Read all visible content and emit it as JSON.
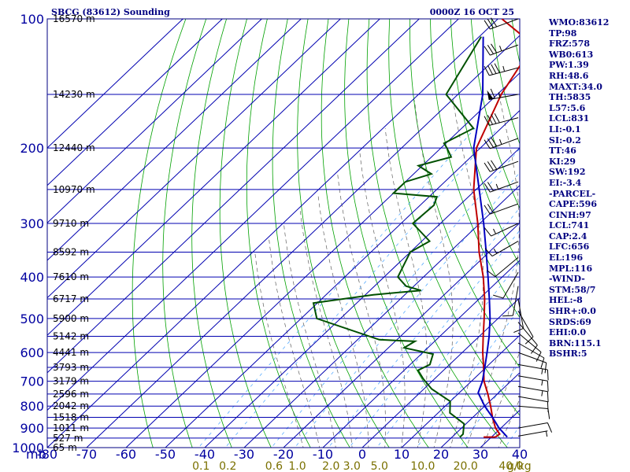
{
  "header": {
    "station": "SBCG (83612) Sounding",
    "time": "0000Z 16 OCT 25"
  },
  "colors": {
    "frame": "#000080",
    "grid": "#0000b0",
    "dry_adiabat": "#00a000",
    "moist_adiabat": "#606060",
    "mixing_ratio": "#40a0ff",
    "temperature": "#c00000",
    "dewpoint": "#005000",
    "parcel": "#0000c0",
    "wind_barb": "#000000"
  },
  "indices": [
    "WMO:83612",
    "TP:98",
    "FRZ:578",
    "WB0:613",
    "PW:1.39",
    "RH:48.6",
    "MAXT:34.0",
    "TH:5835",
    "L57:5.6",
    "LCL:831",
    "LI:-0.1",
    "SI:-0.2",
    "TT:46",
    "KI:29",
    "SW:192",
    "EI:-3.4",
    "-PARCEL-",
    "CAPE:596",
    "CINH:97",
    "LCL:741",
    "CAP:2.4",
    "LFC:656",
    "EL:196",
    "MPL:116",
    "-WIND-",
    "STM:58/7",
    "HEL:-8",
    "SHR+:0.0",
    "SRDS:69",
    "EHI:0.0",
    "BRN:115.1",
    "BSHR:5"
  ],
  "chart_data": {
    "type": "skew-t sounding",
    "title": "SBCG (83612) Sounding 0000Z 16 OCT 25",
    "xlabel_unit": "mb",
    "pressure_ticks": [
      100,
      200,
      300,
      400,
      500,
      600,
      700,
      800,
      900,
      1000
    ],
    "pressure_labels": [
      "100",
      "200",
      "300",
      "400",
      "500",
      "600",
      "700",
      "800",
      "900",
      "1000"
    ],
    "temperature_ticks": [
      "-80",
      "-70",
      "-60",
      "-50",
      "-40",
      "-30",
      "-20",
      "-10",
      "0",
      "10",
      "20",
      "30",
      "40"
    ],
    "temperature_range_C": [
      -80,
      40
    ],
    "mixing_ratio_labels": [
      "0.1",
      "0.2",
      "0.6",
      "1.0",
      "2.0",
      "3.0",
      "5.0",
      "10.0",
      "20.0",
      "40.0",
      "g/kg"
    ],
    "height_labels": [
      {
        "p": 100,
        "text": "16570 m"
      },
      {
        "p": 150,
        "text": "14230 m"
      },
      {
        "p": 200,
        "text": "12440 m"
      },
      {
        "p": 250,
        "text": "10970 m"
      },
      {
        "p": 300,
        "text": "9710 m"
      },
      {
        "p": 350,
        "text": "8592 m"
      },
      {
        "p": 400,
        "text": "7610 m"
      },
      {
        "p": 450,
        "text": "6717 m"
      },
      {
        "p": 500,
        "text": "5900 m"
      },
      {
        "p": 550,
        "text": "5142 m"
      },
      {
        "p": 600,
        "text": "4441 m"
      },
      {
        "p": 650,
        "text": "3793 m"
      },
      {
        "p": 700,
        "text": "3179 m"
      },
      {
        "p": 750,
        "text": "2596 m"
      },
      {
        "p": 800,
        "text": "2042 m"
      },
      {
        "p": 850,
        "text": "1518 m"
      },
      {
        "p": 900,
        "text": "1011 m"
      },
      {
        "p": 950,
        "text": "527 m"
      },
      {
        "p": 1000,
        "text": "65 m"
      }
    ],
    "series": [
      {
        "name": "Temperature",
        "color": "#c00000",
        "points": [
          [
            100,
            -79
          ],
          [
            115,
            -64
          ],
          [
            150,
            -59
          ],
          [
            200,
            -51
          ],
          [
            250,
            -40.6
          ],
          [
            300,
            -30.5
          ],
          [
            350,
            -22.5
          ],
          [
            400,
            -14.8
          ],
          [
            450,
            -8.6
          ],
          [
            500,
            -3.5
          ],
          [
            550,
            1
          ],
          [
            600,
            5.2
          ],
          [
            650,
            9.4
          ],
          [
            700,
            13.2
          ],
          [
            750,
            17.6
          ],
          [
            800,
            21.5
          ],
          [
            850,
            25
          ],
          [
            900,
            28.6
          ],
          [
            930,
            31.3
          ],
          [
            945,
            31
          ]
        ]
      },
      {
        "name": "Dewpoint",
        "color": "#005000",
        "points": [
          [
            110,
            -79.5
          ],
          [
            150,
            -73
          ],
          [
            180,
            -57
          ],
          [
            195,
            -60.5
          ],
          [
            200,
            -58.5
          ],
          [
            210,
            -55
          ],
          [
            220,
            -61
          ],
          [
            230,
            -55.5
          ],
          [
            240,
            -60
          ],
          [
            255,
            -60
          ],
          [
            260,
            -48
          ],
          [
            272,
            -46.5
          ],
          [
            300,
            -47
          ],
          [
            330,
            -38
          ],
          [
            350,
            -40
          ],
          [
            400,
            -36.5
          ],
          [
            420,
            -32
          ],
          [
            430,
            -27
          ],
          [
            440,
            -38
          ],
          [
            460,
            -51
          ],
          [
            500,
            -46
          ],
          [
            560,
            -24.5
          ],
          [
            565,
            -15
          ],
          [
            585,
            -16
          ],
          [
            605,
            -7
          ],
          [
            640,
            -5
          ],
          [
            660,
            -6.5
          ],
          [
            690,
            -3
          ],
          [
            730,
            2
          ],
          [
            780,
            10
          ],
          [
            830,
            13
          ],
          [
            880,
            19.5
          ],
          [
            930,
            22
          ],
          [
            945,
            22
          ]
        ]
      },
      {
        "name": "Parcel",
        "color": "#0000c0",
        "points": [
          [
            110,
            -79
          ],
          [
            150,
            -63.7
          ],
          [
            200,
            -51.7
          ],
          [
            250,
            -39.2
          ],
          [
            300,
            -29
          ],
          [
            350,
            -20.7
          ],
          [
            400,
            -13.6
          ],
          [
            450,
            -7.4
          ],
          [
            500,
            -2
          ],
          [
            550,
            2.5
          ],
          [
            600,
            6.3
          ],
          [
            650,
            9.7
          ],
          [
            700,
            12.8
          ],
          [
            745,
            14.8
          ],
          [
            800,
            20
          ],
          [
            850,
            25
          ],
          [
            900,
            29.5
          ],
          [
            945,
            34
          ]
        ]
      }
    ],
    "surface_segment": {
      "p": 945,
      "t1": 28,
      "t2": 31
    },
    "wind_barbs": [
      {
        "p": 100,
        "dir": 250,
        "kt": 30
      },
      {
        "p": 115,
        "dir": 250,
        "kt": 35
      },
      {
        "p": 130,
        "dir": 255,
        "kt": 45
      },
      {
        "p": 150,
        "dir": 260,
        "kt": 65
      },
      {
        "p": 170,
        "dir": 255,
        "kt": 40
      },
      {
        "p": 190,
        "dir": 250,
        "kt": 35
      },
      {
        "p": 215,
        "dir": 250,
        "kt": 30
      },
      {
        "p": 240,
        "dir": 250,
        "kt": 25
      },
      {
        "p": 270,
        "dir": 250,
        "kt": 20
      },
      {
        "p": 300,
        "dir": 245,
        "kt": 15
      },
      {
        "p": 330,
        "dir": 240,
        "kt": 15
      },
      {
        "p": 360,
        "dir": 230,
        "kt": 10
      },
      {
        "p": 390,
        "dir": 210,
        "kt": 10
      },
      {
        "p": 420,
        "dir": 190,
        "kt": 10
      },
      {
        "p": 450,
        "dir": 170,
        "kt": 10
      },
      {
        "p": 480,
        "dir": 150,
        "kt": 10
      },
      {
        "p": 510,
        "dir": 140,
        "kt": 10
      },
      {
        "p": 540,
        "dir": 130,
        "kt": 10
      },
      {
        "p": 570,
        "dir": 120,
        "kt": 10
      },
      {
        "p": 600,
        "dir": 110,
        "kt": 10
      },
      {
        "p": 640,
        "dir": 100,
        "kt": 15
      },
      {
        "p": 680,
        "dir": 100,
        "kt": 15
      },
      {
        "p": 720,
        "dir": 100,
        "kt": 15
      },
      {
        "p": 760,
        "dir": 100,
        "kt": 10
      },
      {
        "p": 800,
        "dir": 95,
        "kt": 10
      },
      {
        "p": 900,
        "dir": 80,
        "kt": 10
      },
      {
        "p": 940,
        "dir": 80,
        "kt": 5
      }
    ]
  }
}
